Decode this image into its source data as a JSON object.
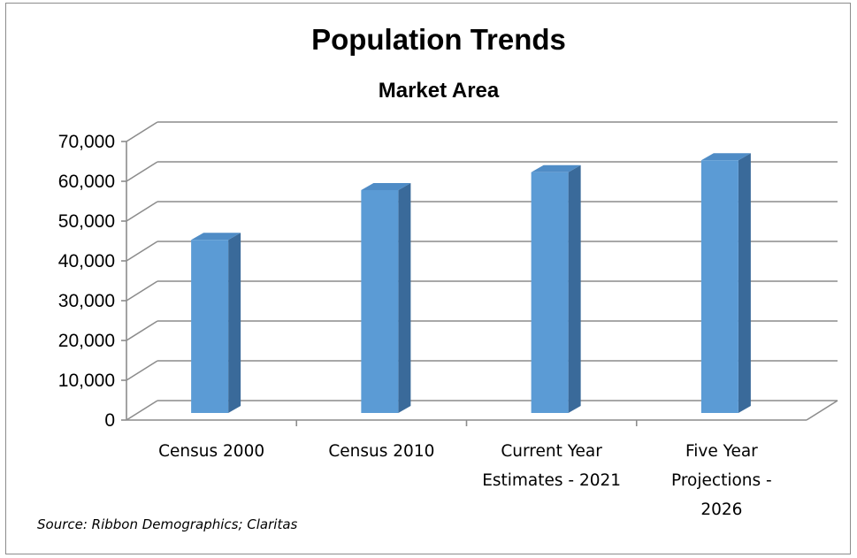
{
  "chart_data": {
    "type": "bar",
    "title": "Population Trends",
    "subtitle": "Market Area",
    "categories": [
      [
        "Census 2000"
      ],
      [
        "Census 2010"
      ],
      [
        "Current Year",
        "Estimates - 2021"
      ],
      [
        "Five Year",
        "Projections -",
        "2026"
      ]
    ],
    "values": [
      43500,
      56000,
      60500,
      63500
    ],
    "ylim": [
      0,
      70000
    ],
    "yticks": [
      "0",
      "10,000",
      "20,000",
      "30,000",
      "40,000",
      "50,000",
      "60,000",
      "70,000"
    ],
    "grid": true,
    "legend": "none",
    "three_d": true,
    "colors": {
      "bar_front": "#5b9bd5",
      "bar_side": "#3a6a9a",
      "bar_top": "#4f8cc6",
      "gridline": "#8c8c8c"
    }
  },
  "source_note": "Source: Ribbon Demographics; Claritas"
}
